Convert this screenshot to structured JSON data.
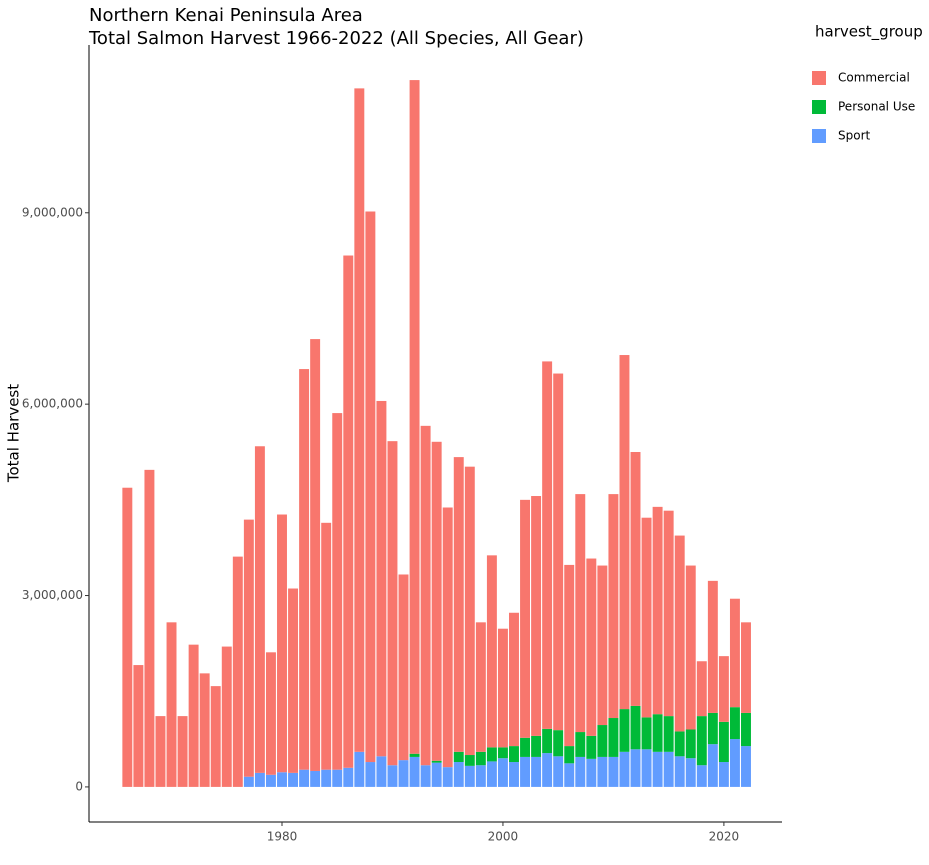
{
  "chart_data": {
    "type": "stacked_bar",
    "title": "Northern Kenai Peninsula Area",
    "subtitle": "Total Salmon Harvest 1966-2022 (All Species, All Gear)",
    "y_label": "Total Harvest",
    "legend_title": "harvest_group",
    "legend": "right",
    "grid": false,
    "x": [
      1966,
      1967,
      1968,
      1969,
      1970,
      1971,
      1972,
      1973,
      1974,
      1975,
      1976,
      1977,
      1978,
      1979,
      1980,
      1981,
      1982,
      1983,
      1984,
      1985,
      1986,
      1987,
      1988,
      1989,
      1990,
      1991,
      1992,
      1993,
      1994,
      1995,
      1996,
      1997,
      1998,
      1999,
      2000,
      2001,
      2002,
      2003,
      2004,
      2005,
      2006,
      2007,
      2008,
      2009,
      2010,
      2011,
      2012,
      2013,
      2014,
      2015,
      2016,
      2017,
      2018,
      2019,
      2020,
      2021,
      2022
    ],
    "xlim": [
      1962.53,
      2025.26
    ],
    "xticks": [
      1980,
      2000,
      2020
    ],
    "ylim": [
      -550000,
      11630000
    ],
    "yticks": [
      0,
      {
        "value": 3000000,
        "label": "3,000,000"
      },
      {
        "value": 6000000,
        "label": "6,000,000"
      },
      {
        "value": 9000000,
        "label": "9,000,000"
      }
    ],
    "series": [
      {
        "name": "Commercial",
        "color": "#F8766D",
        "values": [
          4690000,
          1910000,
          4970000,
          1110000,
          2580000,
          1110000,
          2230000,
          1780000,
          1580000,
          2200000,
          3610000,
          4030000,
          5120000,
          1920000,
          4040000,
          2890000,
          6280000,
          6770000,
          3870000,
          5590000,
          8030000,
          10400000,
          8630000,
          5570000,
          5080000,
          2910000,
          10560000,
          5320000,
          5000000,
          4070000,
          4620000,
          4520000,
          2030000,
          3010000,
          1860000,
          2090000,
          3730000,
          3760000,
          5760000,
          5590000,
          2840000,
          3730000,
          2780000,
          2500000,
          3510000,
          5550000,
          3980000,
          3130000,
          3250000,
          3220000,
          3070000,
          2570000,
          860000,
          2070000,
          1030000,
          1700000,
          1420000
        ]
      },
      {
        "name": "Personal Use",
        "color": "#00BA38",
        "values": [
          null,
          null,
          null,
          null,
          null,
          null,
          null,
          null,
          null,
          null,
          null,
          null,
          null,
          null,
          null,
          null,
          null,
          null,
          null,
          null,
          null,
          null,
          null,
          null,
          null,
          null,
          50000,
          null,
          30000,
          null,
          160000,
          170000,
          210000,
          220000,
          170000,
          250000,
          300000,
          330000,
          380000,
          410000,
          270000,
          390000,
          360000,
          500000,
          610000,
          670000,
          680000,
          500000,
          590000,
          560000,
          390000,
          450000,
          770000,
          490000,
          630000,
          500000,
          520000
        ]
      },
      {
        "name": "Sport",
        "color": "#619CFF",
        "values": [
          null,
          null,
          null,
          null,
          null,
          null,
          null,
          null,
          null,
          null,
          null,
          160000,
          220000,
          190000,
          230000,
          220000,
          270000,
          250000,
          270000,
          270000,
          300000,
          550000,
          390000,
          480000,
          340000,
          420000,
          470000,
          340000,
          380000,
          310000,
          390000,
          330000,
          340000,
          400000,
          450000,
          390000,
          470000,
          470000,
          530000,
          480000,
          370000,
          470000,
          440000,
          470000,
          470000,
          550000,
          590000,
          590000,
          550000,
          550000,
          480000,
          450000,
          340000,
          670000,
          390000,
          750000,
          640000
        ]
      }
    ]
  }
}
